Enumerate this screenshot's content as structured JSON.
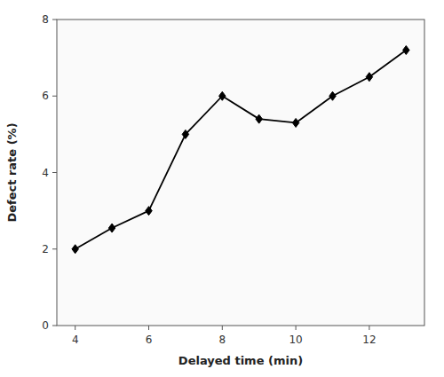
{
  "chart_data": {
    "type": "line",
    "x": [
      4,
      5,
      6,
      7,
      8,
      9,
      10,
      11,
      12,
      13
    ],
    "values": [
      2.0,
      2.55,
      3.0,
      5.0,
      6.0,
      5.4,
      5.3,
      6.0,
      6.5,
      7.2
    ],
    "x_label": "Delayed time (min)",
    "y_label": "Defect rate (%)",
    "xlim": [
      3.5,
      13.5
    ],
    "ylim": [
      0,
      8
    ],
    "xticks": [
      4,
      6,
      8,
      10,
      12
    ],
    "yticks": [
      0,
      2,
      4,
      6,
      8
    ],
    "color": "#000000",
    "marker": "diamond",
    "grid": false
  }
}
